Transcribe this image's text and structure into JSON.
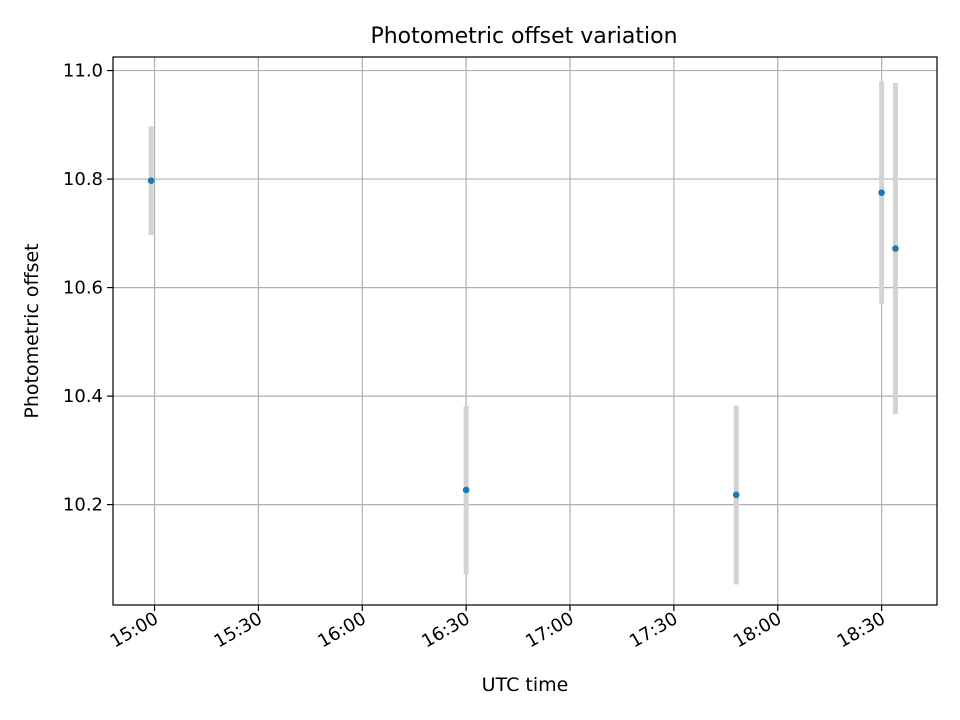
{
  "chart_data": {
    "type": "scatter",
    "title": "Photometric offset variation",
    "xlabel": "UTC time",
    "ylabel": "Photometric offset",
    "x_axis_kind": "time",
    "xlim": [
      "14:48",
      "18:46"
    ],
    "ylim": [
      10.015,
      11.025
    ],
    "x_ticks": [
      "15:00",
      "15:30",
      "16:00",
      "16:30",
      "17:00",
      "17:30",
      "18:00",
      "18:30"
    ],
    "y_ticks": [
      10.2,
      10.4,
      10.6,
      10.8,
      11.0
    ],
    "y_tick_labels": [
      "10.2",
      "10.4",
      "10.6",
      "10.8",
      "11.0"
    ],
    "grid": true,
    "points": [
      {
        "x": "14:59",
        "y": 10.797,
        "yerr": 0.1
      },
      {
        "x": "16:30",
        "y": 10.227,
        "yerr": 0.155
      },
      {
        "x": "17:48",
        "y": 10.218,
        "yerr": 0.165
      },
      {
        "x": "18:30",
        "y": 10.775,
        "yerr": 0.205
      },
      {
        "x": "18:34",
        "y": 10.672,
        "yerr": 0.305
      }
    ],
    "colors": {
      "marker": "#1f77b4",
      "errorbar": "#d3d3d3",
      "grid": "#b0b0b0"
    }
  }
}
